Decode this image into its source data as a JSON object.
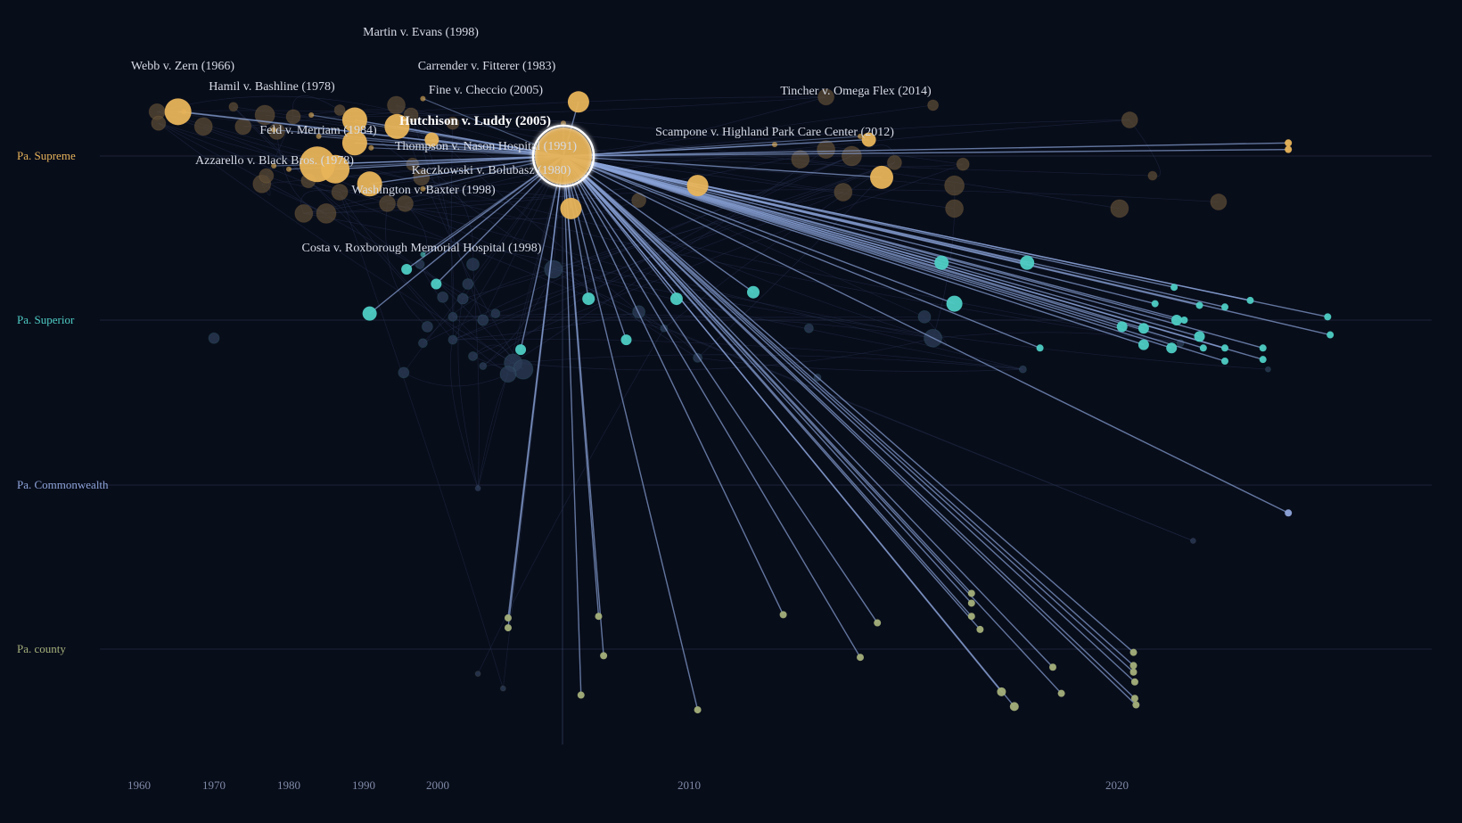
{
  "chart_data": {
    "type": "scatter",
    "title": "",
    "xlabel": "",
    "ylabel": "",
    "xlim": [
      1958,
      2037
    ],
    "x_ticks": [
      1960,
      1970,
      1980,
      1990,
      2000,
      2010,
      2020
    ],
    "grid": true,
    "tiers": [
      {
        "name": "Pa. Supreme",
        "color": "#e8b45a"
      },
      {
        "name": "Pa. Superior",
        "color": "#4ecdc4"
      },
      {
        "name": "Pa. Commonwealth",
        "color": "#8fa5db"
      },
      {
        "name": "Pa. county",
        "color": "#a4b07a"
      }
    ],
    "focus": {
      "name": "Hutchison v. Luddy (2005)",
      "year": 2005,
      "tier": "Pa. Supreme",
      "offset": 0
    },
    "labeled_cases": [
      {
        "name": "Martin v. Evans (1998)",
        "year": 1998,
        "tier": "Pa. Supreme",
        "offset": -0.35
      },
      {
        "name": "Webb v. Zern (1966)",
        "year": 1966,
        "tier": "Pa. Supreme",
        "offset": -0.27
      },
      {
        "name": "Carrender v. Fitterer (1983)",
        "year": 1983,
        "tier": "Pa. Supreme",
        "offset": -0.25
      },
      {
        "name": "Hamil v. Bashline (1978)",
        "year": 1978,
        "tier": "Pa. Supreme",
        "offset": -0.16
      },
      {
        "name": "Fine v. Checcio (2005)",
        "year": 2005,
        "tier": "Pa. Supreme",
        "offset": -0.2
      },
      {
        "name": "Tincher v. Omega Flex (2014)",
        "year": 2014,
        "tier": "Pa. Supreme",
        "offset": -0.12
      },
      {
        "name": "Feld v. Merriam (1984)",
        "year": 1984,
        "tier": "Pa. Supreme",
        "offset": -0.12
      },
      {
        "name": "Scampone v. Highland Park Care Center (2012)",
        "year": 2012,
        "tier": "Pa. Supreme",
        "offset": -0.07
      },
      {
        "name": "Thompson v. Nason Hospital (1991)",
        "year": 1991,
        "tier": "Pa. Supreme",
        "offset": -0.05
      },
      {
        "name": "Azzarello v. Black Bros. (1978)",
        "year": 1978,
        "tier": "Pa. Supreme",
        "offset": 0.06
      },
      {
        "name": "Kaczkowski v. Bolubasz (1980)",
        "year": 1980,
        "tier": "Pa. Supreme",
        "offset": 0.08
      },
      {
        "name": "Washington v. Baxter (1998)",
        "year": 1998,
        "tier": "Pa. Supreme",
        "offset": 0.2
      },
      {
        "name": "Costa v. Roxborough Memorial Hospital (1998)",
        "year": 1998,
        "tier": "Pa. Superior",
        "offset": -0.4
      }
    ],
    "citing_cases": [
      {
        "year": 2033.5,
        "tier": "Pa. Supreme",
        "offset": -0.08,
        "w": 4
      },
      {
        "year": 2033.5,
        "tier": "Pa. Supreme",
        "offset": -0.04,
        "w": 4
      },
      {
        "year": 2010.2,
        "tier": "Pa. Supreme",
        "offset": 0.18,
        "w": 12
      },
      {
        "year": 2014.5,
        "tier": "Pa. Supreme",
        "offset": 0.13,
        "w": 13
      },
      {
        "year": 2014.2,
        "tier": "Pa. Supreme",
        "offset": -0.1,
        "w": 8
      },
      {
        "year": 1965.2,
        "tier": "Pa. Supreme",
        "offset": -0.27,
        "w": 15
      },
      {
        "year": 1988.8,
        "tier": "Pa. Supreme",
        "offset": -0.22,
        "w": 14
      },
      {
        "year": 1983.8,
        "tier": "Pa. Supreme",
        "offset": 0.05,
        "w": 20
      },
      {
        "year": 1988.8,
        "tier": "Pa. Supreme",
        "offset": -0.08,
        "w": 14
      },
      {
        "year": 1994.5,
        "tier": "Pa. Supreme",
        "offset": -0.18,
        "w": 14
      },
      {
        "year": 1990.8,
        "tier": "Pa. Supreme",
        "offset": 0.17,
        "w": 14
      },
      {
        "year": 1986.2,
        "tier": "Pa. Supreme",
        "offset": 0.08,
        "w": 16
      },
      {
        "year": 2005.3,
        "tier": "Pa. Supreme",
        "offset": 0.32,
        "w": 12
      },
      {
        "year": 2005.6,
        "tier": "Pa. Supreme",
        "offset": -0.33,
        "w": 12
      },
      {
        "year": 1999.2,
        "tier": "Pa. Supreme",
        "offset": -0.1,
        "w": 8
      },
      {
        "year": 1990.8,
        "tier": "Pa. Superior",
        "offset": -0.04,
        "w": 8
      },
      {
        "year": 1995.8,
        "tier": "Pa. Superior",
        "offset": -0.31,
        "w": 6
      },
      {
        "year": 1999.8,
        "tier": "Pa. Superior",
        "offset": -0.22,
        "w": 6
      },
      {
        "year": 2009.5,
        "tier": "Pa. Superior",
        "offset": -0.13,
        "w": 7
      },
      {
        "year": 2011.5,
        "tier": "Pa. Superior",
        "offset": -0.17,
        "w": 7
      },
      {
        "year": 2015.9,
        "tier": "Pa. Superior",
        "offset": -0.35,
        "w": 8
      },
      {
        "year": 2017.9,
        "tier": "Pa. Superior",
        "offset": -0.35,
        "w": 8
      },
      {
        "year": 2016.2,
        "tier": "Pa. Superior",
        "offset": -0.1,
        "w": 9
      },
      {
        "year": 2006.0,
        "tier": "Pa. Superior",
        "offset": -0.13,
        "w": 7
      },
      {
        "year": 2007.5,
        "tier": "Pa. Superior",
        "offset": 0.12,
        "w": 6
      },
      {
        "year": 2003.3,
        "tier": "Pa. Superior",
        "offset": 0.18,
        "w": 6
      },
      {
        "year": 2020.4,
        "tier": "Pa. Superior",
        "offset": 0.04,
        "w": 6
      },
      {
        "year": 2022.1,
        "tier": "Pa. Superior",
        "offset": 0.05,
        "w": 6
      },
      {
        "year": 2022.1,
        "tier": "Pa. Superior",
        "offset": 0.15,
        "w": 6
      },
      {
        "year": 2024.7,
        "tier": "Pa. Superior",
        "offset": 0.0,
        "w": 6
      },
      {
        "year": 2024.3,
        "tier": "Pa. Superior",
        "offset": 0.17,
        "w": 6
      },
      {
        "year": 2025.3,
        "tier": "Pa. Superior",
        "offset": 0.0,
        "w": 4
      },
      {
        "year": 2026.8,
        "tier": "Pa. Superior",
        "offset": 0.17,
        "w": 4
      },
      {
        "year": 2028.5,
        "tier": "Pa. Superior",
        "offset": 0.17,
        "w": 4
      },
      {
        "year": 2028.5,
        "tier": "Pa. Superior",
        "offset": 0.25,
        "w": 4
      },
      {
        "year": 2031.5,
        "tier": "Pa. Superior",
        "offset": 0.17,
        "w": 4
      },
      {
        "year": 2031.5,
        "tier": "Pa. Superior",
        "offset": 0.24,
        "w": 4
      },
      {
        "year": 2036.6,
        "tier": "Pa. Superior",
        "offset": -0.02,
        "w": 4
      },
      {
        "year": 2036.8,
        "tier": "Pa. Superior",
        "offset": 0.09,
        "w": 4
      },
      {
        "year": 2028.5,
        "tier": "Pa. Superior",
        "offset": -0.08,
        "w": 4
      },
      {
        "year": 2026.5,
        "tier": "Pa. Superior",
        "offset": -0.09,
        "w": 4
      },
      {
        "year": 2030.5,
        "tier": "Pa. Superior",
        "offset": -0.12,
        "w": 4
      },
      {
        "year": 2026.5,
        "tier": "Pa. Superior",
        "offset": 0.1,
        "w": 6
      },
      {
        "year": 2024.5,
        "tier": "Pa. Superior",
        "offset": -0.2,
        "w": 4
      },
      {
        "year": 2023.0,
        "tier": "Pa. Superior",
        "offset": -0.1,
        "w": 4
      },
      {
        "year": 2018.2,
        "tier": "Pa. Superior",
        "offset": 0.17,
        "w": 4
      },
      {
        "year": 2033.5,
        "tier": "Pa. Commonwealth",
        "offset": 0.17,
        "w": 4
      },
      {
        "year": 2002.8,
        "tier": "Pa. county",
        "offset": -0.19,
        "w": 4
      },
      {
        "year": 2002.8,
        "tier": "Pa. county",
        "offset": -0.13,
        "w": 4
      },
      {
        "year": 2006.4,
        "tier": "Pa. county",
        "offset": -0.2,
        "w": 4
      },
      {
        "year": 2006.6,
        "tier": "Pa. county",
        "offset": 0.04,
        "w": 4
      },
      {
        "year": 2005.7,
        "tier": "Pa. county",
        "offset": 0.28,
        "w": 4
      },
      {
        "year": 2010.2,
        "tier": "Pa. county",
        "offset": 0.37,
        "w": 4
      },
      {
        "year": 2012.2,
        "tier": "Pa. county",
        "offset": -0.21,
        "w": 4
      },
      {
        "year": 2014.0,
        "tier": "Pa. county",
        "offset": 0.05,
        "w": 4
      },
      {
        "year": 2014.4,
        "tier": "Pa. county",
        "offset": -0.16,
        "w": 4
      },
      {
        "year": 2016.6,
        "tier": "Pa. county",
        "offset": -0.34,
        "w": 4
      },
      {
        "year": 2016.6,
        "tier": "Pa. county",
        "offset": -0.28,
        "w": 4
      },
      {
        "year": 2016.6,
        "tier": "Pa. county",
        "offset": -0.2,
        "w": 4
      },
      {
        "year": 2016.8,
        "tier": "Pa. county",
        "offset": -0.12,
        "w": 4
      },
      {
        "year": 2017.3,
        "tier": "Pa. county",
        "offset": 0.26,
        "w": 5
      },
      {
        "year": 2017.6,
        "tier": "Pa. county",
        "offset": 0.35,
        "w": 5
      },
      {
        "year": 2018.5,
        "tier": "Pa. county",
        "offset": 0.11,
        "w": 4
      },
      {
        "year": 2018.7,
        "tier": "Pa. county",
        "offset": 0.27,
        "w": 4
      },
      {
        "year": 2021.3,
        "tier": "Pa. county",
        "offset": 0.02,
        "w": 4
      },
      {
        "year": 2021.3,
        "tier": "Pa. county",
        "offset": 0.1,
        "w": 4
      },
      {
        "year": 2021.3,
        "tier": "Pa. county",
        "offset": 0.14,
        "w": 4
      },
      {
        "year": 2021.4,
        "tier": "Pa. county",
        "offset": 0.2,
        "w": 4
      },
      {
        "year": 2021.4,
        "tier": "Pa. county",
        "offset": 0.3,
        "w": 4
      },
      {
        "year": 2021.5,
        "tier": "Pa. county",
        "offset": 0.34,
        "w": 4
      }
    ],
    "background_cases": [
      {
        "year": 1962.4,
        "tier": "Pa. Supreme",
        "offset": -0.27,
        "w": 9
      },
      {
        "year": 1962.6,
        "tier": "Pa. Supreme",
        "offset": -0.2,
        "w": 8
      },
      {
        "year": 1968.6,
        "tier": "Pa. Supreme",
        "offset": -0.18,
        "w": 10
      },
      {
        "year": 1972.6,
        "tier": "Pa. Supreme",
        "offset": -0.3,
        "w": 5
      },
      {
        "year": 1976.8,
        "tier": "Pa. Supreme",
        "offset": -0.25,
        "w": 11
      },
      {
        "year": 1980.6,
        "tier": "Pa. Supreme",
        "offset": -0.24,
        "w": 8
      },
      {
        "year": 1978.4,
        "tier": "Pa. Supreme",
        "offset": -0.15,
        "w": 9
      },
      {
        "year": 1986.8,
        "tier": "Pa. Supreme",
        "offset": -0.28,
        "w": 6
      },
      {
        "year": 1994.4,
        "tier": "Pa. Supreme",
        "offset": -0.31,
        "w": 10
      },
      {
        "year": 1996.4,
        "tier": "Pa. Supreme",
        "offset": -0.25,
        "w": 8
      },
      {
        "year": 2000.6,
        "tier": "Pa. Supreme",
        "offset": -0.2,
        "w": 7
      },
      {
        "year": 2013.2,
        "tier": "Pa. Supreme",
        "offset": -0.36,
        "w": 9
      },
      {
        "year": 2015.7,
        "tier": "Pa. Supreme",
        "offset": -0.31,
        "w": 6
      },
      {
        "year": 2021.0,
        "tier": "Pa. Supreme",
        "offset": -0.22,
        "w": 9
      },
      {
        "year": 2013.8,
        "tier": "Pa. Supreme",
        "offset": 0.0,
        "w": 11
      },
      {
        "year": 2012.6,
        "tier": "Pa. Supreme",
        "offset": 0.02,
        "w": 10
      },
      {
        "year": 2014.8,
        "tier": "Pa. Supreme",
        "offset": 0.04,
        "w": 8
      },
      {
        "year": 2016.4,
        "tier": "Pa. Supreme",
        "offset": 0.05,
        "w": 7
      },
      {
        "year": 2016.2,
        "tier": "Pa. Supreme",
        "offset": 0.18,
        "w": 11
      },
      {
        "year": 2016.2,
        "tier": "Pa. Supreme",
        "offset": 0.32,
        "w": 10
      },
      {
        "year": 2020.2,
        "tier": "Pa. Supreme",
        "offset": 0.32,
        "w": 10
      },
      {
        "year": 2022.8,
        "tier": "Pa. Supreme",
        "offset": 0.12,
        "w": 5
      },
      {
        "year": 2028.0,
        "tier": "Pa. Supreme",
        "offset": 0.28,
        "w": 9
      },
      {
        "year": 2013.2,
        "tier": "Pa. Supreme",
        "offset": -0.04,
        "w": 10
      },
      {
        "year": 1976.4,
        "tier": "Pa. Supreme",
        "offset": 0.17,
        "w": 10
      },
      {
        "year": 1977.0,
        "tier": "Pa. Supreme",
        "offset": 0.12,
        "w": 8
      },
      {
        "year": 1982.6,
        "tier": "Pa. Supreme",
        "offset": 0.15,
        "w": 8
      },
      {
        "year": 1982.0,
        "tier": "Pa. Supreme",
        "offset": 0.35,
        "w": 10
      },
      {
        "year": 1985.0,
        "tier": "Pa. Supreme",
        "offset": 0.35,
        "w": 11
      },
      {
        "year": 1986.8,
        "tier": "Pa. Supreme",
        "offset": 0.22,
        "w": 9
      },
      {
        "year": 1993.2,
        "tier": "Pa. Supreme",
        "offset": 0.29,
        "w": 9
      },
      {
        "year": 1995.6,
        "tier": "Pa. Supreme",
        "offset": 0.29,
        "w": 9
      },
      {
        "year": 1997.8,
        "tier": "Pa. Supreme",
        "offset": 0.13,
        "w": 9
      },
      {
        "year": 1996.6,
        "tier": "Pa. Supreme",
        "offset": 0.05,
        "w": 7
      },
      {
        "year": 2008.0,
        "tier": "Pa. Supreme",
        "offset": 0.27,
        "w": 8
      },
      {
        "year": 2013.6,
        "tier": "Pa. Supreme",
        "offset": 0.22,
        "w": 10
      },
      {
        "year": 1973.9,
        "tier": "Pa. Supreme",
        "offset": -0.18,
        "w": 9
      },
      {
        "year": 1997.6,
        "tier": "Pa. Superior",
        "offset": -0.34,
        "w": 5
      },
      {
        "year": 2001.4,
        "tier": "Pa. Superior",
        "offset": -0.34,
        "w": 7
      },
      {
        "year": 2004.6,
        "tier": "Pa. Superior",
        "offset": -0.31,
        "w": 10
      },
      {
        "year": 2001.2,
        "tier": "Pa. Superior",
        "offset": -0.22,
        "w": 6
      },
      {
        "year": 2000.2,
        "tier": "Pa. Superior",
        "offset": -0.14,
        "w": 6
      },
      {
        "year": 2001.0,
        "tier": "Pa. Superior",
        "offset": -0.13,
        "w": 6
      },
      {
        "year": 2002.3,
        "tier": "Pa. Superior",
        "offset": -0.04,
        "w": 5
      },
      {
        "year": 2000.6,
        "tier": "Pa. Superior",
        "offset": -0.02,
        "w": 5
      },
      {
        "year": 2001.8,
        "tier": "Pa. Superior",
        "offset": 0.0,
        "w": 6
      },
      {
        "year": 1998.6,
        "tier": "Pa. Superior",
        "offset": 0.04,
        "w": 6
      },
      {
        "year": 1998.0,
        "tier": "Pa. Superior",
        "offset": 0.14,
        "w": 5
      },
      {
        "year": 2000.6,
        "tier": "Pa. Superior",
        "offset": 0.12,
        "w": 5
      },
      {
        "year": 2001.4,
        "tier": "Pa. Superior",
        "offset": 0.22,
        "w": 5
      },
      {
        "year": 2001.8,
        "tier": "Pa. Superior",
        "offset": 0.28,
        "w": 4
      },
      {
        "year": 2003.0,
        "tier": "Pa. Superior",
        "offset": 0.26,
        "w": 10
      },
      {
        "year": 2003.4,
        "tier": "Pa. Superior",
        "offset": 0.3,
        "w": 11
      },
      {
        "year": 2002.8,
        "tier": "Pa. Superior",
        "offset": 0.33,
        "w": 9
      },
      {
        "year": 1995.4,
        "tier": "Pa. Superior",
        "offset": 0.32,
        "w": 6
      },
      {
        "year": 1970.0,
        "tier": "Pa. Superior",
        "offset": 0.11,
        "w": 6
      },
      {
        "year": 2009.0,
        "tier": "Pa. Superior",
        "offset": 0.05,
        "w": 4
      },
      {
        "year": 2010.2,
        "tier": "Pa. Superior",
        "offset": 0.23,
        "w": 5
      },
      {
        "year": 2012.8,
        "tier": "Pa. Superior",
        "offset": 0.05,
        "w": 5
      },
      {
        "year": 2013.0,
        "tier": "Pa. Superior",
        "offset": 0.35,
        "w": 4
      },
      {
        "year": 2015.5,
        "tier": "Pa. Superior",
        "offset": -0.02,
        "w": 7
      },
      {
        "year": 2015.7,
        "tier": "Pa. Superior",
        "offset": 0.11,
        "w": 10
      },
      {
        "year": 2017.8,
        "tier": "Pa. Superior",
        "offset": 0.3,
        "w": 4
      },
      {
        "year": 2025.0,
        "tier": "Pa. Superior",
        "offset": 0.14,
        "w": 4
      },
      {
        "year": 2008.0,
        "tier": "Pa. Superior",
        "offset": -0.05,
        "w": 7
      },
      {
        "year": 2031.9,
        "tier": "Pa. Superior",
        "offset": 0.3,
        "w": 3
      },
      {
        "year": 2001.6,
        "tier": "Pa. Commonwealth",
        "offset": 0.02,
        "w": 3
      },
      {
        "year": 2026.0,
        "tier": "Pa. Commonwealth",
        "offset": 0.34,
        "w": 3
      },
      {
        "year": 2001.6,
        "tier": "Pa. county",
        "offset": 0.15,
        "w": 3
      },
      {
        "year": 2002.6,
        "tier": "Pa. county",
        "offset": 0.24,
        "w": 3
      }
    ]
  }
}
